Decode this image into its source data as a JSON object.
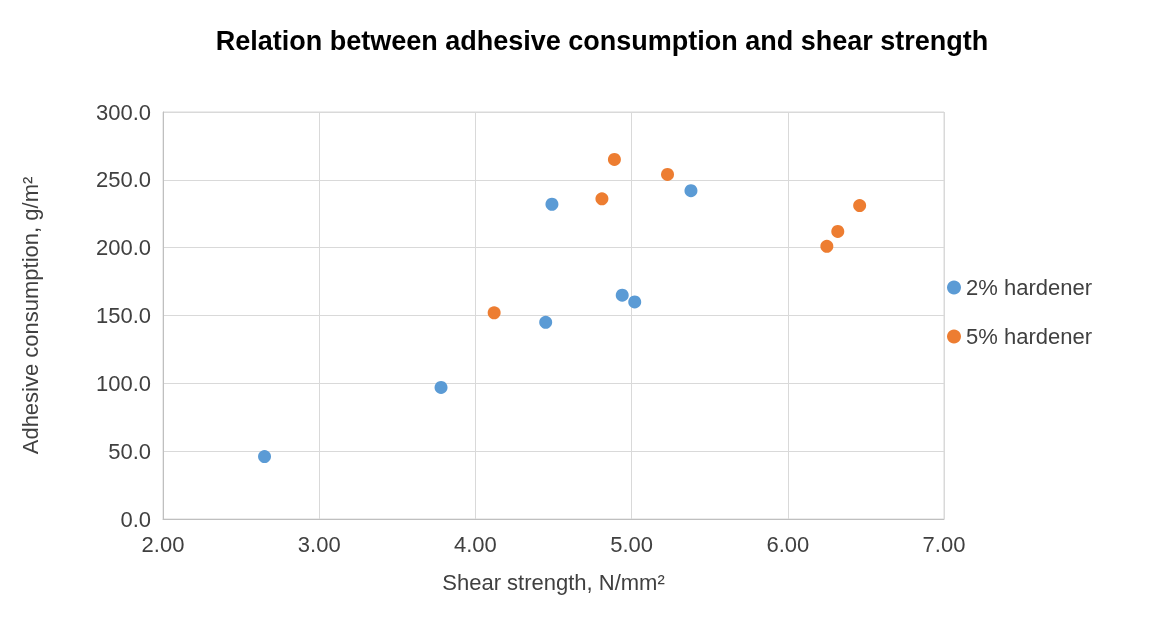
{
  "chart_data": {
    "type": "scatter",
    "title": "Relation between adhesive consumption and shear strength",
    "xlabel": "Shear strength, N/mm²",
    "ylabel": "Adhesive consumption, g/m²",
    "series": [
      {
        "name": "2% hardener",
        "color": "#5b9bd5",
        "x": [
          2.65,
          3.78,
          4.49,
          4.45,
          4.94,
          5.02,
          5.38
        ],
        "values": [
          46,
          97,
          232,
          145,
          165,
          160,
          242
        ]
      },
      {
        "name": "5% hardener",
        "color": "#ed7d31",
        "x": [
          4.12,
          4.89,
          4.81,
          5.23,
          6.46,
          6.32,
          6.25
        ],
        "values": [
          152,
          265,
          236,
          254,
          231,
          212,
          201
        ]
      }
    ],
    "xlim": [
      2,
      7
    ],
    "xticks": [
      {
        "value": 2,
        "label": "2.00"
      },
      {
        "value": 3,
        "label": "3.00"
      },
      {
        "value": 4,
        "label": "4.00"
      },
      {
        "value": 5,
        "label": "5.00"
      },
      {
        "value": 6,
        "label": "6.00"
      },
      {
        "value": 7,
        "label": "7.00"
      }
    ],
    "ylim": [
      0,
      300
    ],
    "yticks": [
      {
        "value": 0,
        "label": "0.0"
      },
      {
        "value": 50,
        "label": "50.0"
      },
      {
        "value": 100,
        "label": "100.0"
      },
      {
        "value": 150,
        "label": "150.0"
      },
      {
        "value": 200,
        "label": "200.0"
      },
      {
        "value": 250,
        "label": "250.0"
      },
      {
        "value": 300,
        "label": "300.0"
      }
    ],
    "grid": true,
    "legend": "right",
    "marker": "circle"
  }
}
